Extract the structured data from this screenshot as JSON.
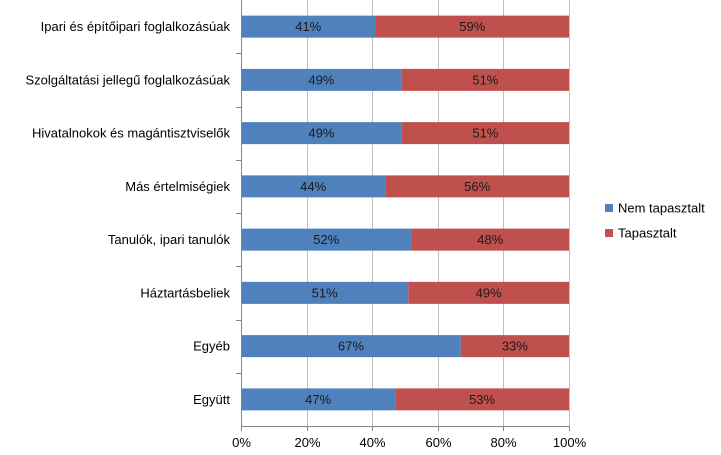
{
  "chart_data": {
    "type": "bar",
    "orientation": "horizontal",
    "stacked": "100%",
    "categories": [
      "Ipari és építőipari foglalkozásúak",
      "Szolgáltatási jellegű foglalkozásúak",
      "Hivatalnokok és magántisztviselők",
      "Más értelmiségiek",
      "Tanulók, ipari tanulók",
      "Háztartásbeliek",
      "Egyéb",
      "Együtt"
    ],
    "series": [
      {
        "name": "Nem tapasztalt",
        "color": "#4F81BD",
        "values": [
          41,
          49,
          49,
          44,
          52,
          51,
          67,
          47
        ]
      },
      {
        "name": "Tapasztalt",
        "color": "#C0504D",
        "values": [
          59,
          51,
          51,
          56,
          48,
          49,
          33,
          53
        ]
      }
    ],
    "data_labels": [
      [
        "41%",
        "49%",
        "49%",
        "44%",
        "52%",
        "51%",
        "67%",
        "47%"
      ],
      [
        "59%",
        "51%",
        "51%",
        "56%",
        "48%",
        "49%",
        "33%",
        "53%"
      ]
    ],
    "xlim": [
      0,
      100
    ],
    "x_ticks": [
      "0%",
      "20%",
      "40%",
      "60%",
      "80%",
      "100%"
    ],
    "grid": true,
    "legend_position": "right"
  }
}
